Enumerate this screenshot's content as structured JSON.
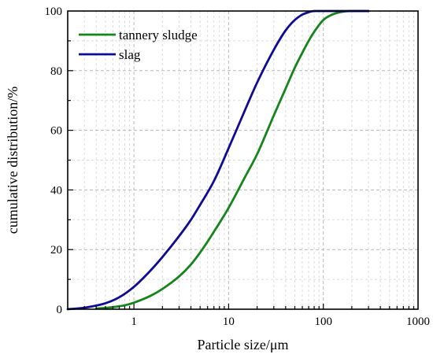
{
  "chart_data": {
    "type": "line",
    "xlabel": "Particle size/μm",
    "ylabel": "cumulative distribution/%",
    "xscale": "log",
    "xlim": [
      0.2,
      1000
    ],
    "ylim": [
      0,
      100
    ],
    "xticks": [
      1,
      10,
      100,
      1000
    ],
    "xtick_labels": [
      "1",
      "10",
      "100",
      "1000"
    ],
    "yticks": [
      0,
      20,
      40,
      60,
      80,
      100
    ],
    "ytick_labels": [
      "0",
      "20",
      "40",
      "60",
      "80",
      "100"
    ],
    "grid": true,
    "grid_style": "dashed",
    "legend_position": "top-left",
    "series": [
      {
        "name": "tannery sludge",
        "color": "#15841A",
        "x": [
          0.4,
          0.6,
          0.8,
          1.0,
          1.5,
          2.0,
          3.0,
          4.0,
          5.0,
          7.0,
          10,
          15,
          20,
          30,
          40,
          50,
          60,
          70,
          80,
          100,
          120,
          150,
          200,
          250,
          300
        ],
        "y": [
          0.2,
          0.7,
          1.3,
          2.2,
          4.5,
          6.8,
          11.0,
          15.0,
          19.0,
          26.0,
          34.0,
          44.5,
          52.0,
          65.0,
          74.0,
          81.0,
          86.0,
          90.0,
          93.0,
          97.0,
          98.6,
          99.6,
          100,
          100,
          100
        ]
      },
      {
        "name": "slag",
        "color": "#0E0B94",
        "x": [
          0.2,
          0.3,
          0.5,
          0.7,
          1.0,
          1.5,
          2.0,
          3.0,
          4.0,
          5.0,
          7.0,
          10,
          15,
          20,
          30,
          40,
          50,
          60,
          70,
          80,
          100,
          150,
          200,
          300
        ],
        "y": [
          0,
          0.5,
          2.0,
          4.0,
          7.5,
          13.0,
          17.5,
          24.5,
          30.0,
          35.0,
          43.0,
          54.0,
          67.0,
          76.0,
          87.0,
          93.5,
          97.0,
          98.8,
          99.6,
          100,
          100,
          100,
          100,
          100
        ]
      }
    ]
  }
}
